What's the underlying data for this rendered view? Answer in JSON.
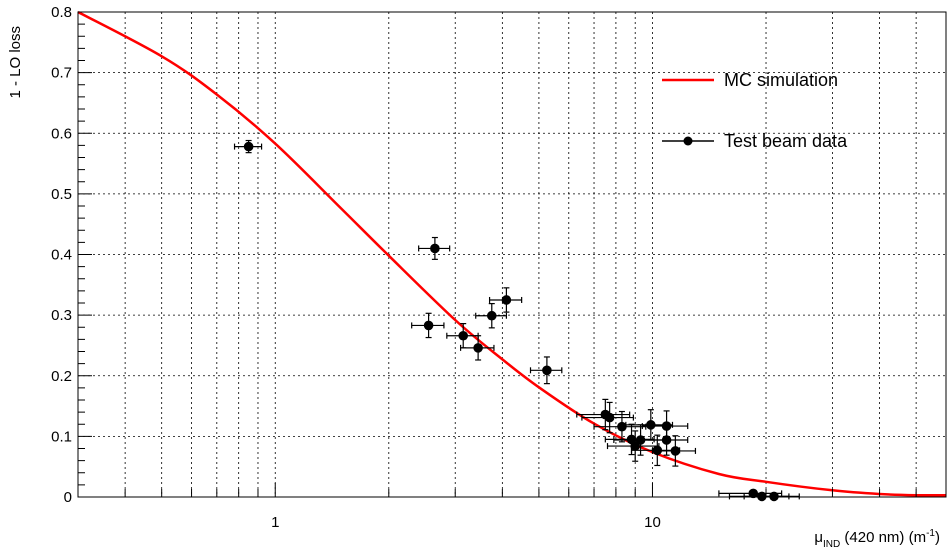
{
  "chart_data": {
    "type": "scatter",
    "title": "",
    "xlabel": {
      "base": "μ",
      "sub": "IND",
      "rest": " (420 nm) (m",
      "sup": "-1",
      "close": ")"
    },
    "ylabel": "1 - LO loss",
    "x_scale": "log",
    "xlim": [
      0.3,
      60
    ],
    "ylim": [
      0,
      0.8
    ],
    "grid": true,
    "x_tick_labels": [
      {
        "x": 1,
        "label": "1"
      },
      {
        "x": 10,
        "label": "10"
      }
    ],
    "y_tick_labels": [
      "0",
      "0.1",
      "0.2",
      "0.3",
      "0.4",
      "0.5",
      "0.6",
      "0.7",
      "0.8"
    ],
    "legend_position": "top-right",
    "colors": {
      "mc": "#ff0000",
      "data": "#000000"
    },
    "series": [
      {
        "name": "MC simulation",
        "kind": "line",
        "x": [
          0.3,
          0.5,
          0.7,
          1.0,
          1.5,
          2.0,
          3.0,
          4.0,
          5.0,
          7.0,
          10.0,
          15.0,
          20.0,
          30.0,
          40.0,
          50.0,
          60.0
        ],
        "y": [
          0.8,
          0.727,
          0.664,
          0.583,
          0.475,
          0.398,
          0.292,
          0.227,
          0.181,
          0.121,
          0.074,
          0.038,
          0.025,
          0.011,
          0.005,
          0.003,
          0.003
        ]
      },
      {
        "name": "Test beam data",
        "kind": "points",
        "points": [
          {
            "x": 0.85,
            "y": 0.578,
            "xerr": 0.07,
            "yerr": 0.01
          },
          {
            "x": 2.65,
            "y": 0.41,
            "xerr": 0.25,
            "yerr": 0.018
          },
          {
            "x": 2.55,
            "y": 0.283,
            "xerr": 0.25,
            "yerr": 0.02
          },
          {
            "x": 3.15,
            "y": 0.266,
            "xerr": 0.3,
            "yerr": 0.02
          },
          {
            "x": 3.45,
            "y": 0.246,
            "xerr": 0.35,
            "yerr": 0.02
          },
          {
            "x": 3.75,
            "y": 0.299,
            "xerr": 0.35,
            "yerr": 0.02
          },
          {
            "x": 4.1,
            "y": 0.325,
            "xerr": 0.4,
            "yerr": 0.02
          },
          {
            "x": 5.25,
            "y": 0.209,
            "xerr": 0.5,
            "yerr": 0.022
          },
          {
            "x": 7.5,
            "y": 0.136,
            "xerr": 1.2,
            "yerr": 0.025
          },
          {
            "x": 7.7,
            "y": 0.131,
            "xerr": 1.2,
            "yerr": 0.025
          },
          {
            "x": 8.3,
            "y": 0.116,
            "xerr": 1.3,
            "yerr": 0.025
          },
          {
            "x": 8.8,
            "y": 0.095,
            "xerr": 1.3,
            "yerr": 0.025
          },
          {
            "x": 9.0,
            "y": 0.084,
            "xerr": 1.4,
            "yerr": 0.025
          },
          {
            "x": 9.3,
            "y": 0.094,
            "xerr": 1.4,
            "yerr": 0.025
          },
          {
            "x": 9.9,
            "y": 0.119,
            "xerr": 1.4,
            "yerr": 0.025
          },
          {
            "x": 10.3,
            "y": 0.077,
            "xerr": 1.5,
            "yerr": 0.025
          },
          {
            "x": 10.9,
            "y": 0.117,
            "xerr": 1.5,
            "yerr": 0.025
          },
          {
            "x": 10.9,
            "y": 0.094,
            "xerr": 1.5,
            "yerr": 0.025
          },
          {
            "x": 11.5,
            "y": 0.076,
            "xerr": 1.5,
            "yerr": 0.025
          },
          {
            "x": 18.5,
            "y": 0.006,
            "xerr": 3.5,
            "yerr": 0.003
          },
          {
            "x": 19.5,
            "y": 0.001,
            "xerr": 3.5,
            "yerr": 0.003
          },
          {
            "x": 21.0,
            "y": 0.001,
            "xerr": 3.5,
            "yerr": 0.003
          }
        ]
      }
    ]
  }
}
